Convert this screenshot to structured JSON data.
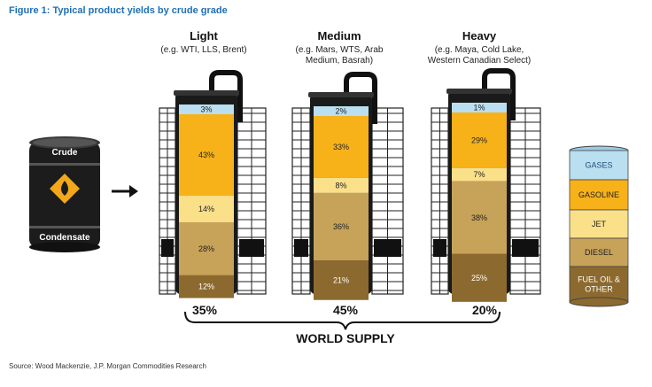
{
  "figure_title": "Figure 1: Typical product yields by crude grade",
  "barrel": {
    "top_label": "Crude",
    "bottom_label": "Condensate"
  },
  "grades": [
    {
      "name": "Light",
      "examples": [
        "(e.g. WTI, LLS, Brent)"
      ],
      "share": "35%",
      "yields": {
        "gases": 3,
        "gasoline": 43,
        "jet": 14,
        "diesel": 28,
        "fuel_oil": 12
      }
    },
    {
      "name": "Medium",
      "examples": [
        "(e.g. Mars, WTS, Arab",
        "Medium, Basrah)"
      ],
      "share": "45%",
      "yields": {
        "gases": 2,
        "gasoline": 33,
        "jet": 8,
        "diesel": 36,
        "fuel_oil": 21
      }
    },
    {
      "name": "Heavy",
      "examples": [
        "(e.g. Maya, Cold Lake,",
        "Western Canadian Select)"
      ],
      "share": "20%",
      "yields": {
        "gases": 1,
        "gasoline": 29,
        "jet": 7,
        "diesel": 38,
        "fuel_oil": 25
      }
    }
  ],
  "legend": [
    {
      "key": "gases",
      "label": "GASES",
      "color": "#b9dff0"
    },
    {
      "key": "gasoline",
      "label": "GASOLINE",
      "color": "#f7b21a"
    },
    {
      "key": "jet",
      "label": "JET",
      "color": "#fbe08a"
    },
    {
      "key": "diesel",
      "label": "DIESEL",
      "color": "#c7a259"
    },
    {
      "key": "fuel_oil",
      "label": "FUEL OIL &\nOTHER",
      "color": "#8c6a2f"
    }
  ],
  "world_supply": "WORLD SUPPLY",
  "source": "Source: Wood Mackenzie, J.P. Morgan Commodities Research"
}
